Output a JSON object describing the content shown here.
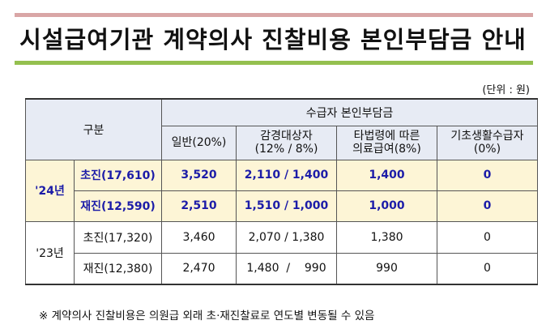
{
  "title": "시설급여기관 계약의사 진찰비용 본인부담금 안내",
  "unit": "(단위 : 원)",
  "table": {
    "category_header": "구분",
    "group_header": "수급자 본인부담금",
    "col_headers": [
      "일반(20%)",
      "감경대상자\n(12% / 8%)",
      "타법령에 따른\n의료급여(8%)",
      "기초생활수급자\n(0%)"
    ],
    "groups": [
      {
        "year": "'24년",
        "highlight": true,
        "rows": [
          {
            "label": "초진(17,610)",
            "values": [
              "3,520",
              "2,110  /  1,400",
              "1,400",
              "0"
            ]
          },
          {
            "label": "재진(12,590)",
            "values": [
              "2,510",
              "1,510  /  1,000",
              "1,000",
              "0"
            ]
          }
        ]
      },
      {
        "year": "'23년",
        "highlight": false,
        "rows": [
          {
            "label": "초진(17,320)",
            "values": [
              "3,460",
              "2,070  /  1,380",
              "1,380",
              "0"
            ]
          },
          {
            "label": "재진(12,380)",
            "values": [
              "2,470",
              "1,480  /    990",
              "990",
              "0"
            ]
          }
        ]
      }
    ]
  },
  "note": "※ 계약의사 진찰비용은 의원급 외래 초·재진찰료로 연도별 변동될 수 있음",
  "colors": {
    "top_bar": "#d9a6a6",
    "bottom_bar": "#94c04f",
    "header_bg": "#e7ebf4",
    "highlight_bg": "#fdf5d6",
    "highlight_text": "#1c1ca8"
  }
}
